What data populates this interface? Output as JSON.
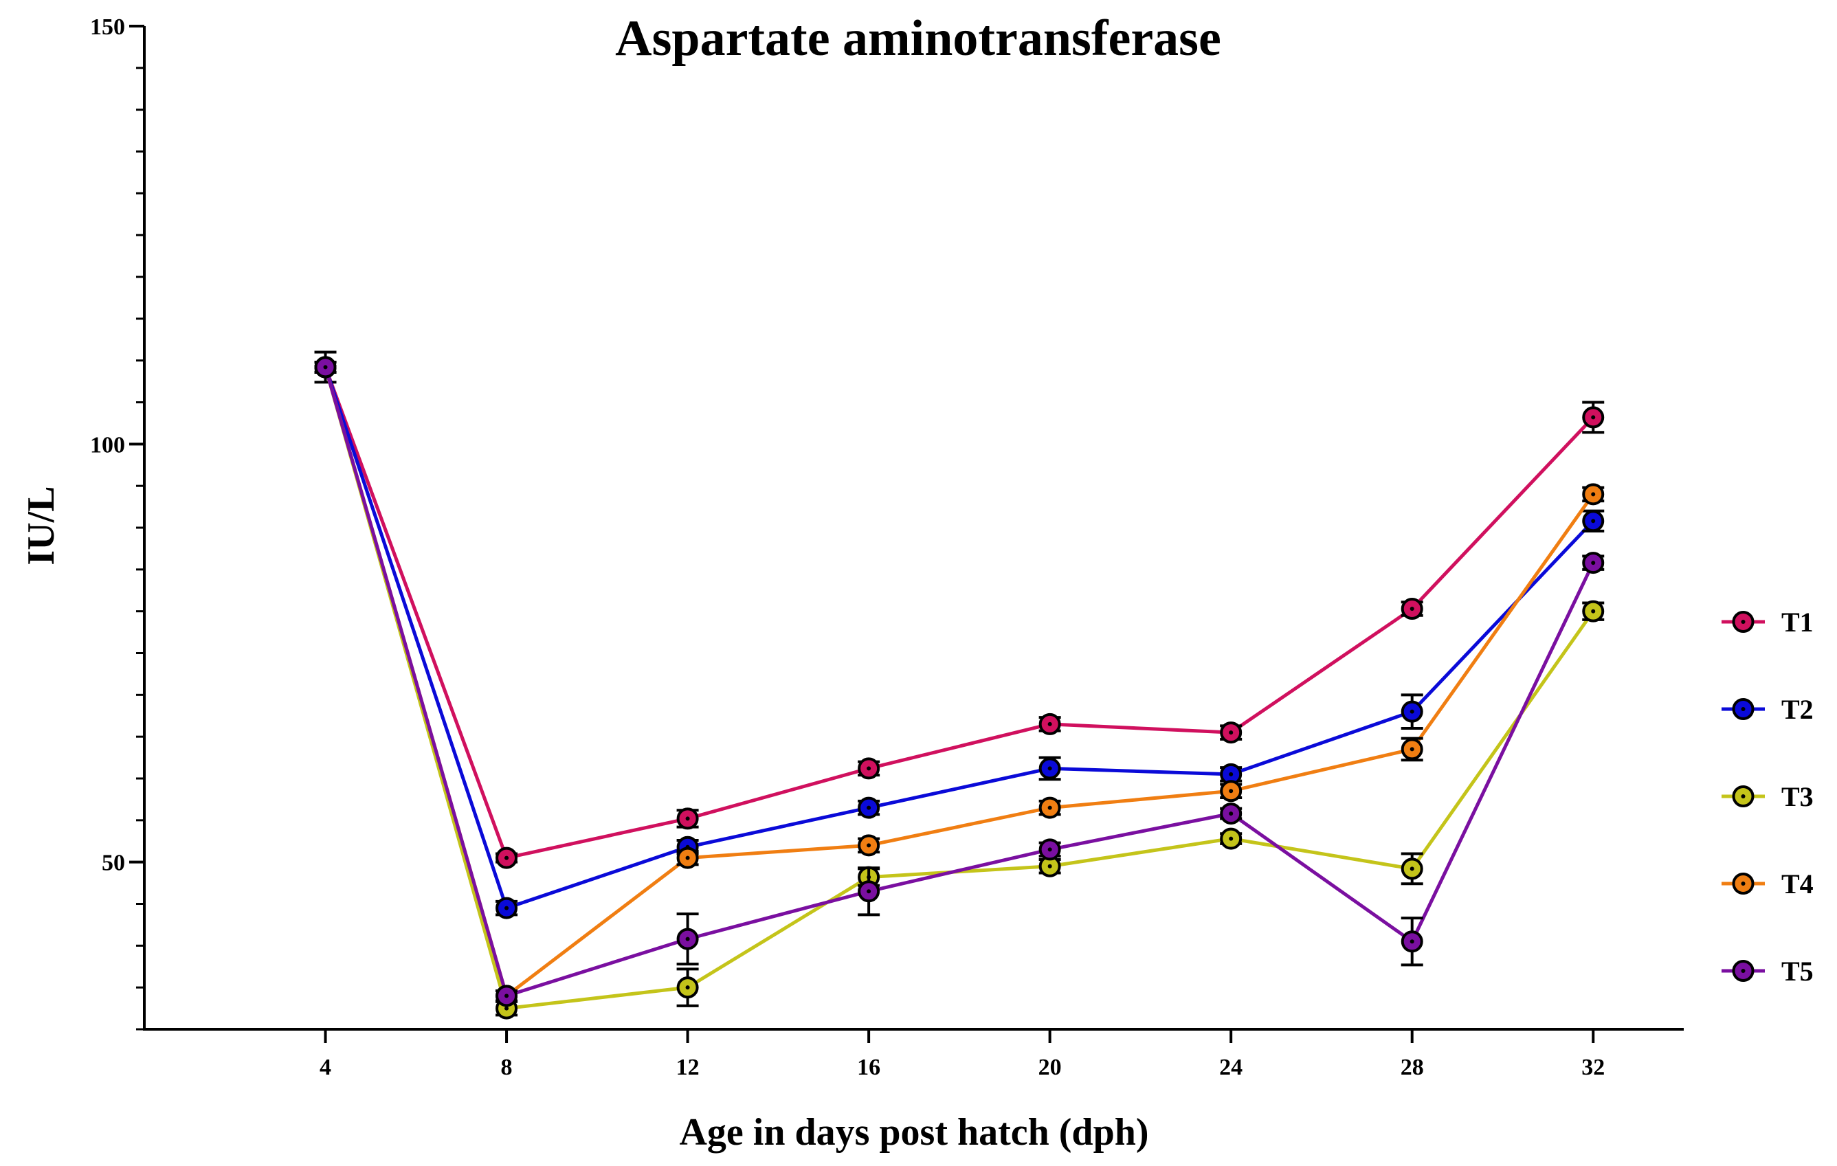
{
  "chart_data": {
    "type": "line",
    "title": "Aspartate aminotransferase",
    "xlabel": "Age in days post hatch (dph)",
    "ylabel": "IU/L",
    "x": [
      4,
      8,
      12,
      16,
      20,
      24,
      28,
      32
    ],
    "xlim": [
      0,
      34
    ],
    "ylim": [
      30,
      150
    ],
    "xticks": [
      "4",
      "8",
      "12",
      "16",
      "20",
      "24",
      "28",
      "32"
    ],
    "yticks": [
      "50",
      "100",
      "150"
    ],
    "legend_position": "right",
    "series": [
      {
        "name": "T1",
        "color": "#d0105e",
        "values": [
          109.2,
          50.5,
          55.2,
          61.2,
          66.5,
          65.5,
          80.3,
          103.2
        ],
        "errors": [
          1.8,
          0.5,
          1.0,
          0.8,
          0.8,
          0.8,
          0.8,
          1.8
        ]
      },
      {
        "name": "T2",
        "color": "#0a0ad8",
        "values": [
          109.2,
          44.5,
          51.8,
          56.5,
          61.2,
          60.5,
          68.0,
          90.8
        ],
        "errors": [
          0.6,
          0.8,
          0.8,
          0.8,
          1.3,
          0.8,
          2.0,
          1.2
        ]
      },
      {
        "name": "T3",
        "color": "#c4c41a",
        "values": [
          109.2,
          32.5,
          35.0,
          48.2,
          49.5,
          52.8,
          49.2,
          80.0
        ],
        "errors": [
          0.6,
          0.8,
          2.2,
          1.0,
          0.8,
          0.6,
          1.8,
          1.0
        ]
      },
      {
        "name": "T4",
        "color": "#f07e12",
        "values": [
          109.2,
          34.0,
          50.5,
          52.0,
          56.5,
          58.5,
          63.5,
          94.0
        ],
        "errors": [
          0.6,
          0.6,
          0.8,
          0.8,
          0.8,
          0.8,
          1.3,
          0.8
        ]
      },
      {
        "name": "T5",
        "color": "#7a0fa0",
        "values": [
          109.2,
          34.0,
          40.8,
          46.5,
          51.5,
          55.8,
          40.5,
          85.8
        ],
        "errors": [
          0.6,
          0.6,
          3.0,
          2.8,
          0.8,
          0.6,
          2.8,
          0.8
        ]
      }
    ]
  }
}
